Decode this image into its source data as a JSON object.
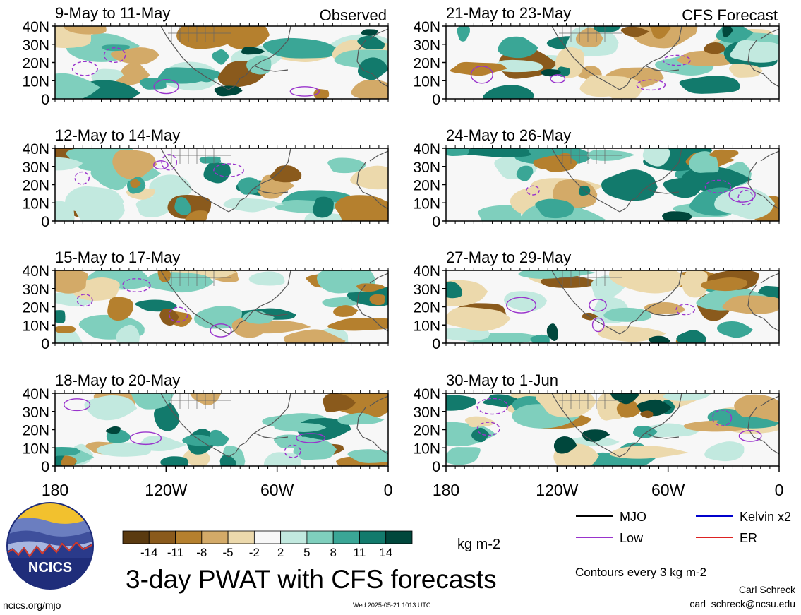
{
  "panels_left": [
    {
      "label": "9-May to 11-May",
      "tag": "Observed"
    },
    {
      "label": "12-May to 14-May"
    },
    {
      "label": "15-May to 17-May"
    },
    {
      "label": "18-May to 20-May"
    }
  ],
  "panels_right": [
    {
      "label": "21-May to 23-May",
      "tag": "CFS Forecast"
    },
    {
      "label": "24-May to 26-May"
    },
    {
      "label": "27-May to 29-May"
    },
    {
      "label": "30-May to 1-Jun"
    }
  ],
  "lat_ticks": [
    "40N",
    "30N",
    "20N",
    "10N",
    "0"
  ],
  "lon_ticks": [
    "180",
    "120W",
    "60W",
    "0"
  ],
  "colorbar": {
    "labels": [
      "-14",
      "-11",
      "-8",
      "-5",
      "-2",
      "2",
      "5",
      "8",
      "11",
      "14"
    ],
    "colors": [
      "#5a3a10",
      "#8a5a1c",
      "#b5802e",
      "#d3aa68",
      "#ecd9ac",
      "#f7f7f7",
      "#c2e9df",
      "#7fcfbd",
      "#3aa696",
      "#127a6c",
      "#00473c"
    ],
    "units": "kg m-2"
  },
  "legend": {
    "mjo": {
      "label": "MJO",
      "color": "#000000"
    },
    "kelvin": {
      "label": "Kelvin x2",
      "color": "#0000cc"
    },
    "low": {
      "label": "Low",
      "color": "#9933cc"
    },
    "er": {
      "label": "ER",
      "color": "#dd2222"
    }
  },
  "title": "3-day PWAT with CFS forecasts",
  "contours_note": "Contours every 3 kg m-2",
  "author": "Carl Schreck",
  "email": "carl_schreck@ncsu.edu",
  "url": "ncics.org/mjo",
  "timestamp": "Wed 2025-05-21 1013 UTC",
  "logo_text": "NCICS"
}
